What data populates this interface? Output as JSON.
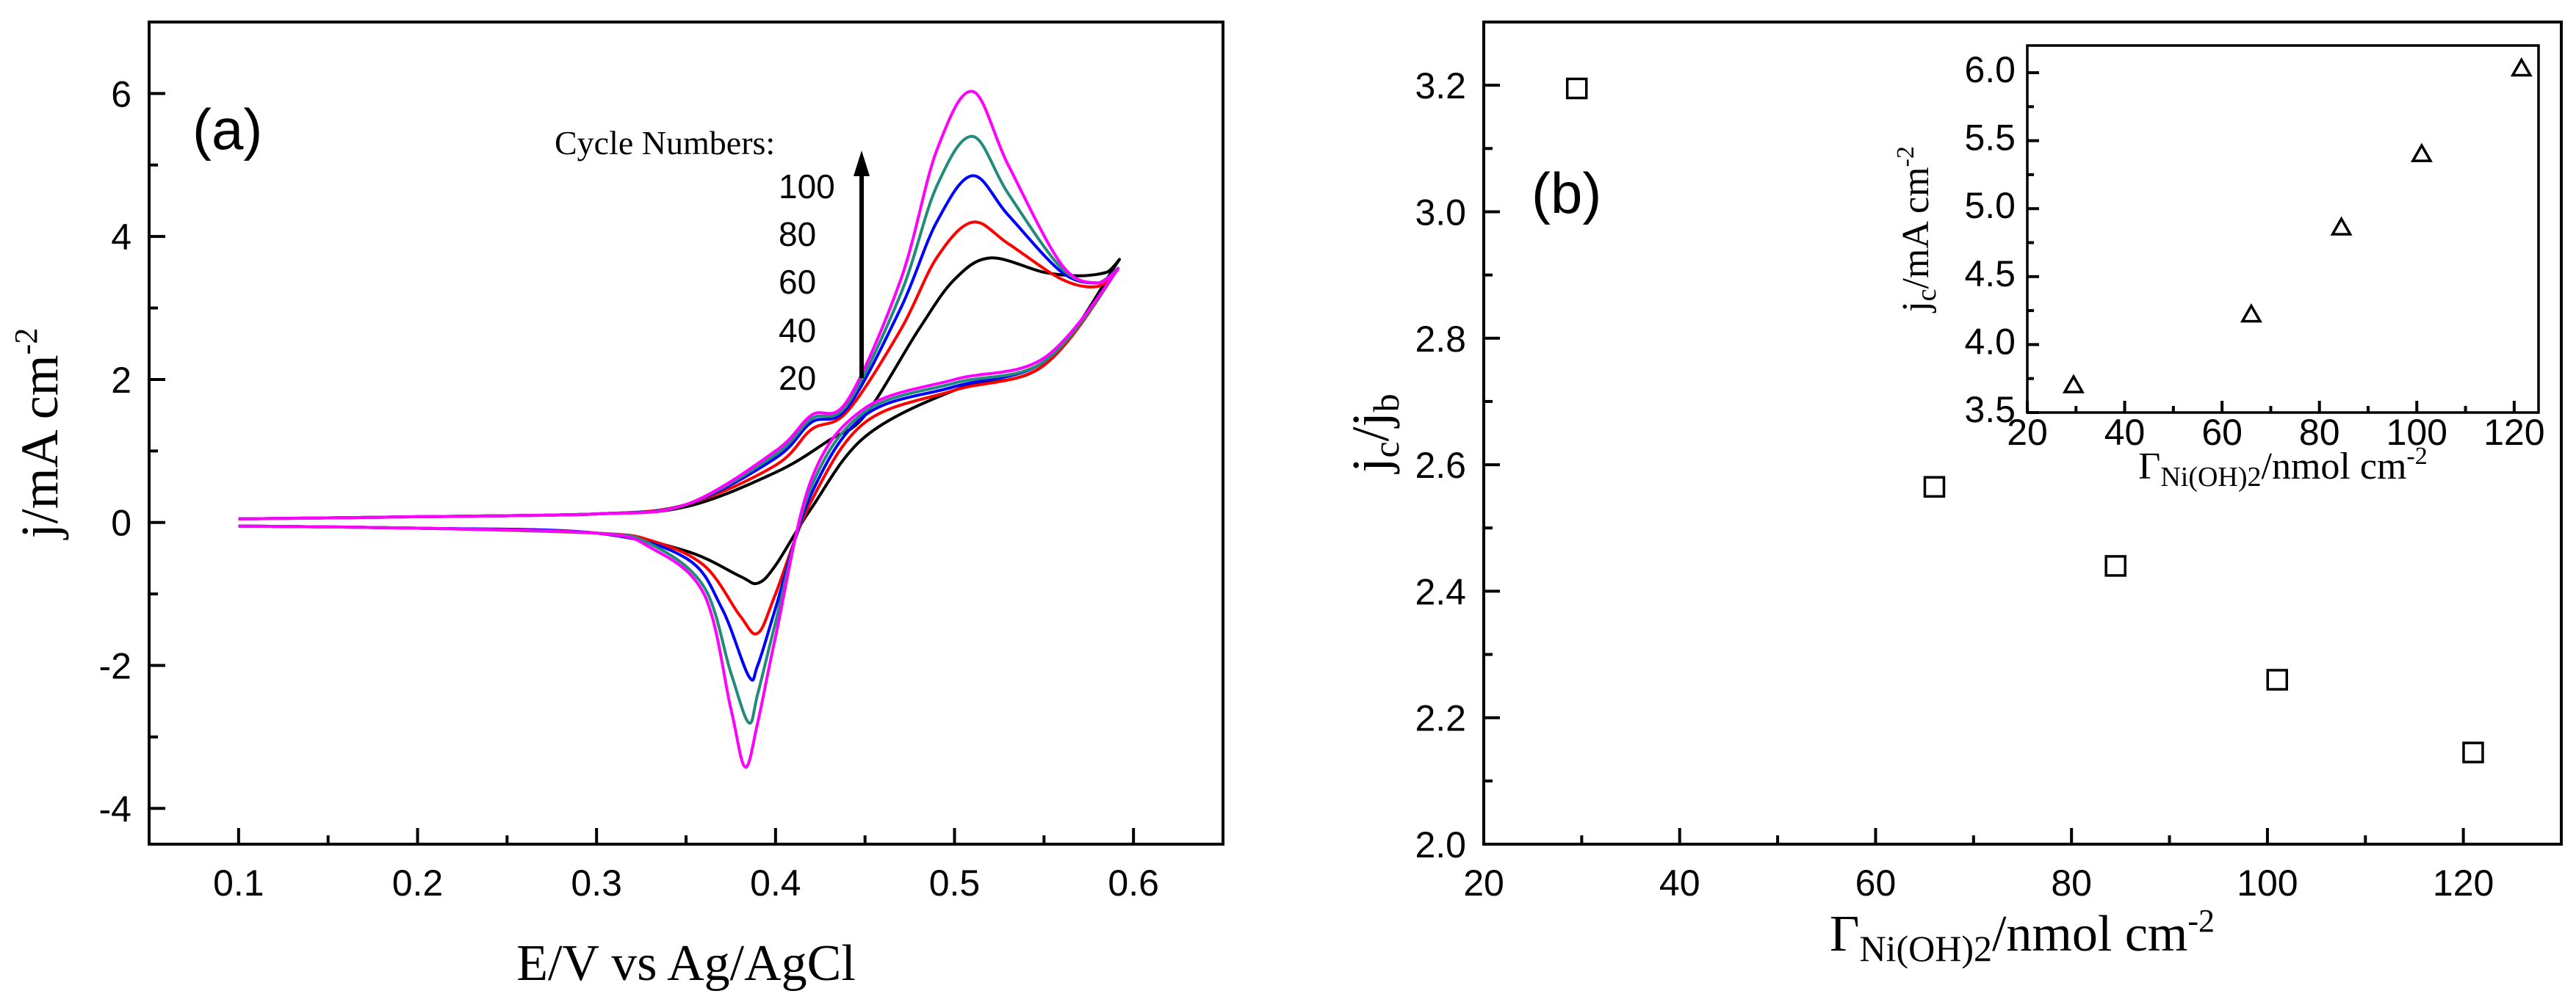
{
  "chart_data": [
    {
      "type": "line",
      "panel_label": "(a)",
      "xlabel": "E/V vs Ag/AgCl",
      "ylabel": {
        "main": "j/mA cm",
        "sup": "-2"
      },
      "xlim": [
        0.05,
        0.65
      ],
      "ylim": [
        -4.5,
        7
      ],
      "xticks": [
        0.1,
        0.2,
        0.3,
        0.4,
        0.5,
        0.6
      ],
      "xtick_labels": [
        "0.1",
        "0.2",
        "0.3",
        "0.4",
        "0.5",
        "0.6"
      ],
      "yticks": [
        -4,
        -2,
        0,
        2,
        4,
        6
      ],
      "ytick_labels": [
        "-4",
        "-2",
        "0",
        "2",
        "4",
        "6"
      ],
      "annotation": {
        "title": "Cycle Numbers:",
        "labels": [
          "100",
          "80",
          "60",
          "40",
          "20"
        ]
      },
      "series": [
        {
          "color": "#000000",
          "cycle": "20",
          "anodic": {
            "x": [
              0.1,
              0.2,
              0.3,
              0.35,
              0.4,
              0.43,
              0.45,
              0.48,
              0.5,
              0.52,
              0.55,
              0.57,
              0.585,
              0.59
            ],
            "y": [
              0.05,
              0.08,
              0.12,
              0.22,
              0.7,
              1.15,
              1.5,
              2.7,
              3.4,
              3.7,
              3.5,
              3.45,
              3.5,
              3.6
            ]
          },
          "cathodic": {
            "x": [
              0.59,
              0.55,
              0.5,
              0.45,
              0.42,
              0.4,
              0.39,
              0.38,
              0.35,
              0.3,
              0.2,
              0.1
            ],
            "y": [
              3.2,
              2.2,
              1.85,
              1.2,
              0.2,
              -0.6,
              -0.85,
              -0.75,
              -0.4,
              -0.15,
              -0.08,
              -0.05
            ]
          }
        },
        {
          "color": "#ff0000",
          "cycle": "40",
          "anodic": {
            "x": [
              0.1,
              0.2,
              0.3,
              0.35,
              0.4,
              0.42,
              0.44,
              0.47,
              0.49,
              0.51,
              0.53,
              0.56,
              0.58,
              0.59
            ],
            "y": [
              0.05,
              0.08,
              0.12,
              0.25,
              0.8,
              1.3,
              1.55,
              2.7,
              3.7,
              4.2,
              3.9,
              3.4,
              3.3,
              3.5
            ]
          },
          "cathodic": {
            "x": [
              0.59,
              0.55,
              0.5,
              0.45,
              0.42,
              0.4,
              0.39,
              0.38,
              0.36,
              0.33,
              0.3,
              0.2,
              0.1
            ],
            "y": [
              3.2,
              2.2,
              1.85,
              1.4,
              0.3,
              -1.0,
              -1.55,
              -1.3,
              -0.6,
              -0.25,
              -0.15,
              -0.08,
              -0.05
            ]
          }
        },
        {
          "color": "#0000ff",
          "cycle": "60",
          "anodic": {
            "x": [
              0.1,
              0.2,
              0.3,
              0.35,
              0.4,
              0.42,
              0.44,
              0.47,
              0.49,
              0.51,
              0.53,
              0.56,
              0.58,
              0.59
            ],
            "y": [
              0.05,
              0.08,
              0.12,
              0.25,
              0.9,
              1.4,
              1.6,
              3.0,
              4.2,
              4.85,
              4.3,
              3.5,
              3.35,
              3.5
            ]
          },
          "cathodic": {
            "x": [
              0.59,
              0.55,
              0.5,
              0.45,
              0.42,
              0.4,
              0.39,
              0.385,
              0.37,
              0.35,
              0.3,
              0.2,
              0.1
            ],
            "y": [
              3.2,
              2.25,
              1.9,
              1.5,
              0.4,
              -1.2,
              -2.0,
              -2.15,
              -1.2,
              -0.5,
              -0.15,
              -0.08,
              -0.05
            ]
          }
        },
        {
          "color": "#228b7a",
          "cycle": "80",
          "anodic": {
            "x": [
              0.1,
              0.2,
              0.3,
              0.35,
              0.4,
              0.42,
              0.44,
              0.47,
              0.49,
              0.51,
              0.53,
              0.56,
              0.58,
              0.59
            ],
            "y": [
              0.05,
              0.08,
              0.12,
              0.25,
              0.95,
              1.45,
              1.65,
              3.2,
              4.7,
              5.4,
              4.6,
              3.55,
              3.35,
              3.5
            ]
          },
          "cathodic": {
            "x": [
              0.59,
              0.55,
              0.5,
              0.45,
              0.42,
              0.4,
              0.39,
              0.385,
              0.375,
              0.36,
              0.33,
              0.3,
              0.2,
              0.1
            ],
            "y": [
              3.2,
              2.25,
              1.95,
              1.55,
              0.5,
              -1.4,
              -2.4,
              -2.8,
              -2.1,
              -0.9,
              -0.3,
              -0.15,
              -0.08,
              -0.05
            ]
          }
        },
        {
          "color": "#ff00ff",
          "cycle": "100",
          "anodic": {
            "x": [
              0.1,
              0.2,
              0.3,
              0.35,
              0.4,
              0.42,
              0.44,
              0.47,
              0.49,
              0.51,
              0.53,
              0.56,
              0.58,
              0.59
            ],
            "y": [
              0.05,
              0.08,
              0.12,
              0.25,
              1.0,
              1.5,
              1.7,
              3.4,
              5.2,
              6.03,
              5.0,
              3.6,
              3.35,
              3.5
            ]
          },
          "cathodic": {
            "x": [
              0.59,
              0.55,
              0.5,
              0.45,
              0.42,
              0.4,
              0.39,
              0.383,
              0.375,
              0.36,
              0.33,
              0.3,
              0.2,
              0.1
            ],
            "y": [
              3.2,
              2.3,
              2.0,
              1.6,
              0.6,
              -1.6,
              -2.8,
              -3.42,
              -2.6,
              -1.0,
              -0.35,
              -0.15,
              -0.08,
              -0.05
            ]
          }
        }
      ]
    },
    {
      "type": "scatter",
      "panel_label": "(b)",
      "xlabel": {
        "pre": "Γ",
        "sub": "Ni(OH)2",
        "post": "/nmol cm",
        "sup": "-2"
      },
      "ylabel": {
        "a": "j",
        "a_sub": "c",
        "slash": "/j",
        "b_sub": "b"
      },
      "xlim": [
        20,
        130
      ],
      "ylim": [
        2.0,
        3.3
      ],
      "xticks": [
        20,
        40,
        60,
        80,
        100,
        120
      ],
      "xtick_labels": [
        "20",
        "40",
        "60",
        "80",
        "100",
        "120"
      ],
      "yticks": [
        2.0,
        2.2,
        2.4,
        2.6,
        2.8,
        3.0,
        3.2
      ],
      "ytick_labels": [
        "2.0",
        "2.2",
        "2.4",
        "2.6",
        "2.8",
        "3.0",
        "3.2"
      ],
      "marker": "square",
      "x": [
        29.5,
        66,
        84.5,
        101,
        121
      ],
      "y": [
        3.195,
        2.565,
        2.44,
        2.26,
        2.145
      ]
    },
    {
      "type": "scatter",
      "role": "inset",
      "xlabel": {
        "pre": "Γ",
        "sub": "Ni(OH)2",
        "post": "/nmol cm",
        "sup": "-2"
      },
      "ylabel": {
        "a": "j",
        "a_sub": "c",
        "post": "/mA cm",
        "sup": "-2"
      },
      "xlim": [
        20,
        125
      ],
      "ylim": [
        3.5,
        6.2
      ],
      "xticks": [
        20,
        40,
        60,
        80,
        100,
        120
      ],
      "xtick_labels": [
        "20",
        "40",
        "60",
        "80",
        "100",
        "120"
      ],
      "yticks": [
        3.5,
        4.0,
        4.5,
        5.0,
        5.5,
        6.0
      ],
      "ytick_labels": [
        "3.5",
        "4.0",
        "4.5",
        "5.0",
        "5.5",
        "6.0"
      ],
      "marker": "triangle",
      "x": [
        29.5,
        66,
        84.5,
        101,
        121.5
      ],
      "y": [
        3.7,
        4.22,
        4.86,
        5.4,
        6.03
      ]
    }
  ]
}
